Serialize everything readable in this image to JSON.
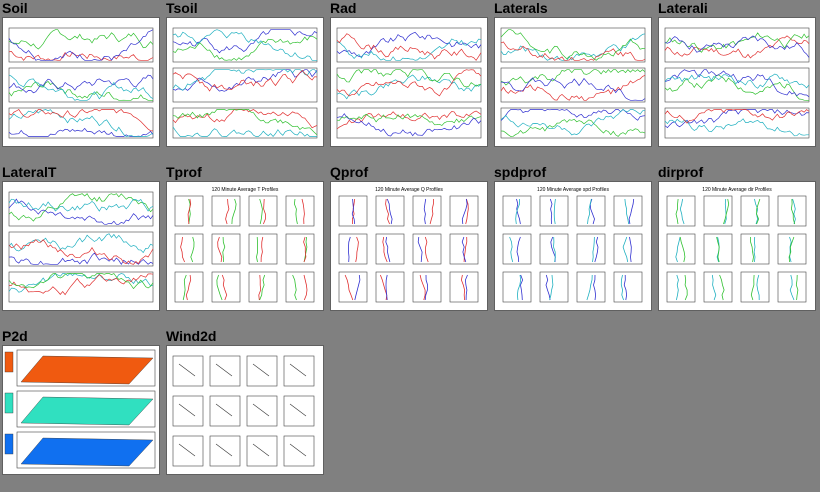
{
  "thumbnails": [
    {
      "id": "soil",
      "title": "Soil",
      "kind": "ts3"
    },
    {
      "id": "tsoil",
      "title": "Tsoil",
      "kind": "ts3"
    },
    {
      "id": "rad",
      "title": "Rad",
      "kind": "ts3"
    },
    {
      "id": "laterals",
      "title": "Laterals",
      "kind": "ts3"
    },
    {
      "id": "laterali",
      "title": "Laterali",
      "kind": "ts3"
    },
    {
      "id": "lateralt",
      "title": "LateralT",
      "kind": "ts3"
    },
    {
      "id": "tprof",
      "title": "Tprof",
      "kind": "prof",
      "subtitle": "120 Minute Average T Profiles"
    },
    {
      "id": "qprof",
      "title": "Qprof",
      "kind": "prof",
      "subtitle": "120 Minute Average Q Profiles"
    },
    {
      "id": "spdprof",
      "title": "spdprof",
      "kind": "prof",
      "subtitle": "120 Minute Average spd Profiles"
    },
    {
      "id": "dirprof",
      "title": "dirprof",
      "kind": "prof",
      "subtitle": "120 Minute Average dir Profiles"
    },
    {
      "id": "p2d",
      "title": "P2d",
      "kind": "p2d"
    },
    {
      "id": "wind2d",
      "title": "Wind2d",
      "kind": "wind2d"
    }
  ],
  "colors": {
    "background": "#808080",
    "thumb_bg": "#ffffff",
    "series_red": "#e03030",
    "series_green": "#30c030",
    "series_blue": "#3030d0",
    "series_cyan": "#20b0c0",
    "series_magenta": "#c030c0",
    "p2d_warm": "#f05a10",
    "p2d_mid": "#30e0c0",
    "p2d_cool": "#1070f0"
  }
}
